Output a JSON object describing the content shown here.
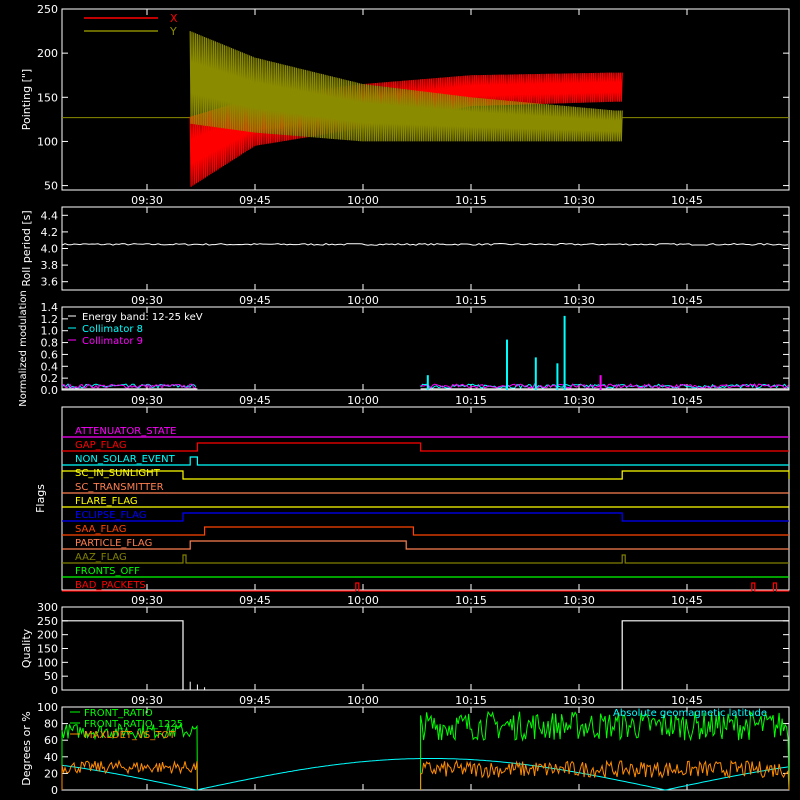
{
  "colors": {
    "bg": "#000000",
    "axis": "#ffffff",
    "red": "#ff0000",
    "olive": "#8b8b00",
    "cyan": "#00ffff",
    "magenta": "#ff00ff",
    "green": "#00ff00",
    "orange": "#ff8c00",
    "yellow": "#ffff00",
    "blue": "#0000ff",
    "coral": "#ff4500",
    "darkorange": "#ff7f50",
    "brown": "#808000",
    "lime": "#00ff00"
  },
  "time_ticks": [
    "09:30",
    "09:45",
    "10:00",
    "10:15",
    "10:30",
    "10:45"
  ],
  "chart_data": [
    {
      "id": "pointing",
      "type": "line",
      "ylabel": "Pointing [\"]",
      "ylim": [
        45,
        250
      ],
      "yticks": [
        50,
        100,
        150,
        200,
        250
      ],
      "legend": [
        {
          "name": "X",
          "color": "#ff0000"
        },
        {
          "name": "Y",
          "color": "#8b8b00"
        }
      ],
      "series": [
        {
          "name": "X",
          "baseline": 127,
          "osc_start": "09:36",
          "osc_end": "10:36",
          "envelope": [
            {
              "t": "09:36",
              "lo": 48,
              "hi": 128
            },
            {
              "t": "09:45",
              "lo": 95,
              "hi": 150
            },
            {
              "t": "10:00",
              "lo": 115,
              "hi": 165
            },
            {
              "t": "10:15",
              "lo": 140,
              "hi": 175
            },
            {
              "t": "10:35",
              "lo": 145,
              "hi": 178
            }
          ]
        },
        {
          "name": "Y",
          "baseline": 127,
          "osc_start": "09:36",
          "osc_end": "10:36",
          "envelope": [
            {
              "t": "09:36",
              "lo": 120,
              "hi": 225
            },
            {
              "t": "09:45",
              "lo": 110,
              "hi": 195
            },
            {
              "t": "10:00",
              "lo": 100,
              "hi": 165
            },
            {
              "t": "10:15",
              "lo": 100,
              "hi": 150
            },
            {
              "t": "10:35",
              "lo": 100,
              "hi": 135
            }
          ]
        }
      ]
    },
    {
      "id": "roll",
      "type": "line",
      "ylabel": "Roll period [s]",
      "ylim": [
        3.5,
        4.5
      ],
      "yticks": [
        3.6,
        3.8,
        4.0,
        4.2,
        4.4
      ],
      "series": [
        {
          "name": "",
          "value": 4.05
        }
      ]
    },
    {
      "id": "modulation",
      "type": "bar",
      "ylabel": "Normalized modulation",
      "ylim": [
        0,
        1.4
      ],
      "yticks": [
        0.0,
        0.2,
        0.4,
        0.6,
        0.8,
        1.0,
        1.2,
        1.4
      ],
      "legend": [
        {
          "name": "Energy band: 12-25 keV",
          "color": "#ffffff"
        },
        {
          "name": "Collimator 8",
          "color": "#00ffff"
        },
        {
          "name": "Collimator 9",
          "color": "#ff00ff"
        }
      ],
      "data_intervals": [
        [
          "09:12",
          "09:37"
        ],
        [
          "10:08",
          "11:00"
        ]
      ],
      "spikes": [
        {
          "t": "10:20",
          "v": 0.85,
          "series": "Collimator 8"
        },
        {
          "t": "10:24",
          "v": 0.55,
          "series": "Collimator 8"
        },
        {
          "t": "10:27",
          "v": 0.45,
          "series": "Collimator 8"
        },
        {
          "t": "10:28",
          "v": 1.25,
          "series": "Collimator 8"
        },
        {
          "t": "10:09",
          "v": 0.25,
          "series": "Collimator 8"
        },
        {
          "t": "10:33",
          "v": 0.25,
          "series": "Collimator 9"
        }
      ]
    },
    {
      "id": "flags",
      "type": "line",
      "ylabel": "Flags",
      "flags": [
        {
          "name": "ATTENUATOR_STATE",
          "color": "#ff00ff",
          "steps": []
        },
        {
          "name": "GAP_FLAG",
          "color": "#ff0000",
          "steps": [
            [
              "09:37",
              "10:08"
            ]
          ]
        },
        {
          "name": "NON_SOLAR_EVENT",
          "color": "#00ffff",
          "steps": [
            [
              "09:36",
              "09:37"
            ]
          ]
        },
        {
          "name": "SC_IN_SUNLIGHT",
          "color": "#ffff00",
          "steps": [
            [
              "09:12",
              "09:35"
            ],
            [
              "10:36",
              "11:00"
            ]
          ]
        },
        {
          "name": "SC_TRANSMITTER",
          "color": "#ff7f50",
          "steps": []
        },
        {
          "name": "FLARE_FLAG",
          "color": "#ffff00",
          "steps": []
        },
        {
          "name": "ECLIPSE_FLAG",
          "color": "#0000ff",
          "steps": [
            [
              "09:35",
              "10:36"
            ]
          ]
        },
        {
          "name": "SAA_FLAG",
          "color": "#ff4500",
          "steps": [
            [
              "09:38",
              "10:07"
            ]
          ]
        },
        {
          "name": "PARTICLE_FLAG",
          "color": "#ff7f50",
          "steps": [
            [
              "09:36",
              "10:06"
            ]
          ]
        },
        {
          "name": "AAZ_FLAG",
          "color": "#808000",
          "steps": [
            [
              "09:35",
              "09:35"
            ],
            [
              "10:36",
              "10:36"
            ]
          ]
        },
        {
          "name": "FRONTS_OFF",
          "color": "#00ff00",
          "steps": []
        },
        {
          "name": "BAD_PACKETS",
          "color": "#ff0000",
          "steps": [
            [
              "09:59",
              "09:59"
            ],
            [
              "10:54",
              "10:54"
            ],
            [
              "10:57",
              "10:57"
            ]
          ]
        }
      ]
    },
    {
      "id": "quality",
      "type": "line",
      "ylabel": "Quality",
      "ylim": [
        0,
        300
      ],
      "yticks": [
        0,
        50,
        100,
        150,
        200,
        250,
        300
      ],
      "segments": [
        {
          "t0": "09:12",
          "t1": "09:35",
          "v": 250
        },
        {
          "t0": "10:36",
          "t1": "11:00",
          "v": 250
        }
      ]
    },
    {
      "id": "ratios",
      "type": "line",
      "ylabel": "Degrees or %",
      "ylim": [
        0,
        100
      ],
      "yticks": [
        0,
        20,
        40,
        60,
        80,
        100
      ],
      "legend": [
        {
          "name": "FRONT_RATIO",
          "color": "#00ff00"
        },
        {
          "name": "FRONT_RATIO_1225",
          "color": "#00ff00"
        },
        {
          "name": "MAXLDET_VS_TOT",
          "color": "#ff8c00"
        },
        {
          "name": "Absolute geomagnetic latitude",
          "color": "#00ffff"
        }
      ],
      "green_intervals": [
        [
          "09:12",
          "09:37",
          62,
          80
        ],
        [
          "10:08",
          "11:00",
          60,
          95
        ]
      ],
      "orange_intervals": [
        [
          "09:12",
          "09:37",
          20,
          35
        ],
        [
          "10:08",
          "11:00",
          15,
          35
        ]
      ]
    }
  ]
}
